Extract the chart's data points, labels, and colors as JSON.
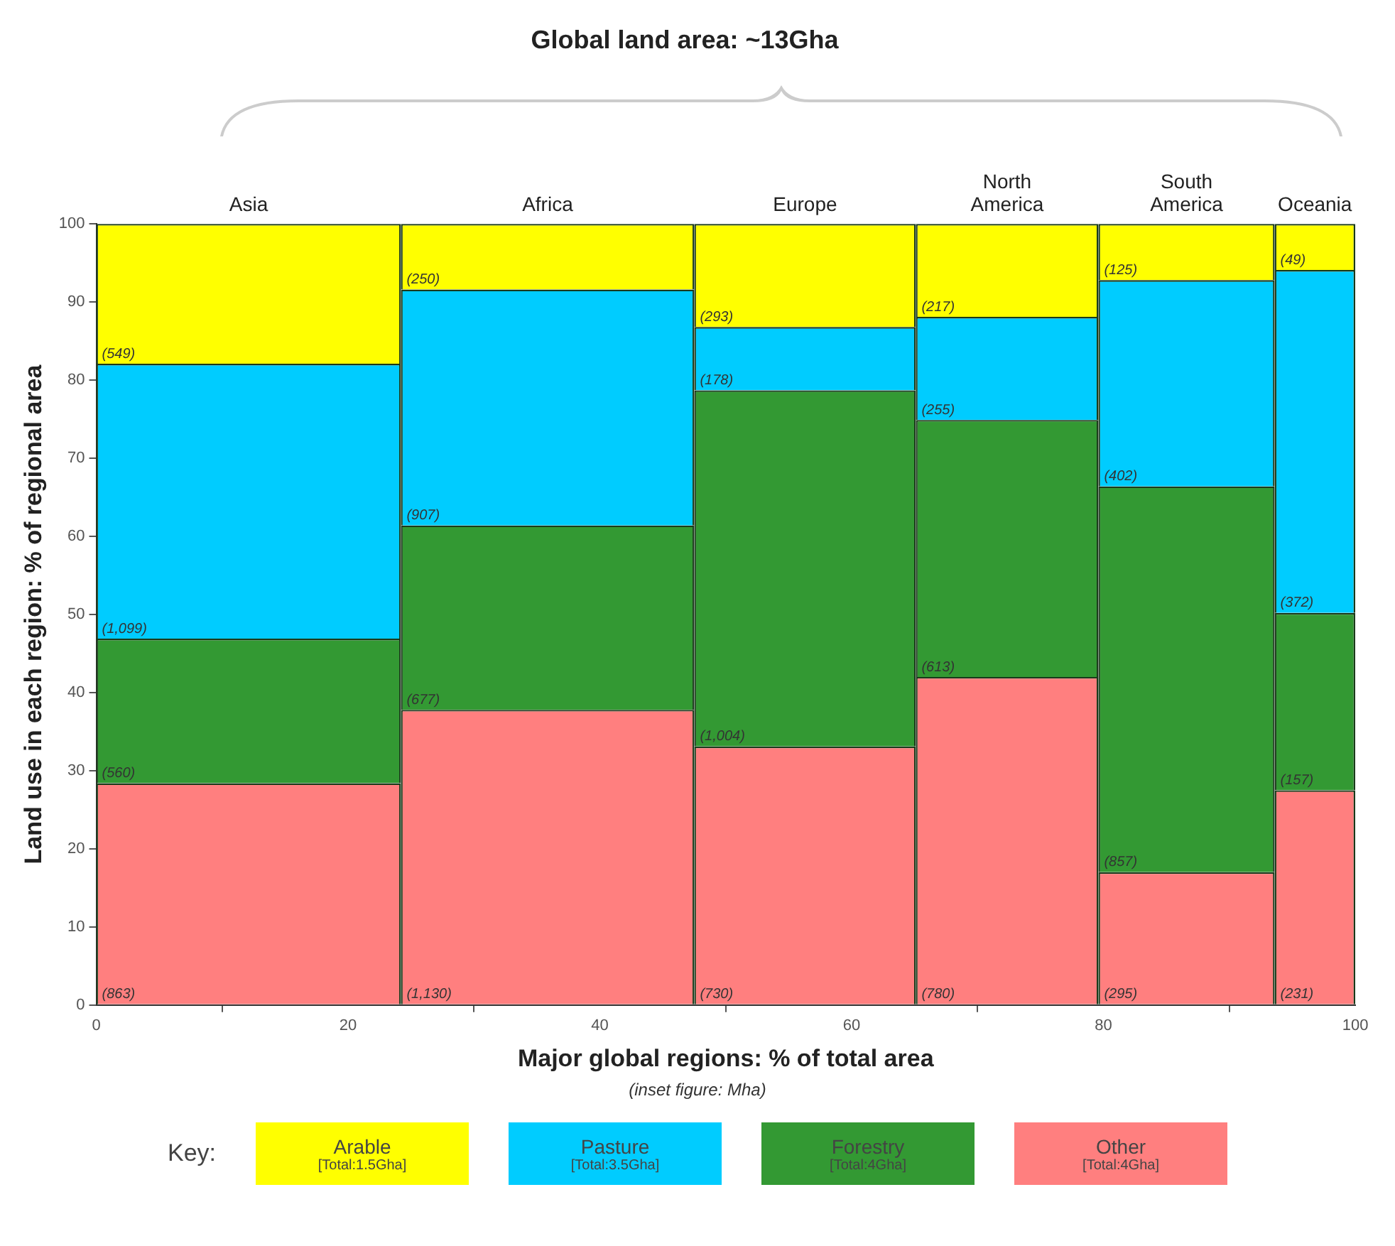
{
  "chart_data": {
    "type": "bar",
    "stacked": true,
    "title": "Global land area: ~13Gha",
    "xlabel": "Major global regions: % of total area",
    "ylabel": "Land use in each region: % of regional area",
    "legend_title": "Key:",
    "x": [
      12.1,
      35.85,
      56.3,
      72.35,
      86.6,
      96.8
    ],
    "xlim": [
      0,
      100
    ],
    "xticks": [
      0,
      20,
      40,
      60,
      80,
      100
    ],
    "ylim": [
      0,
      100
    ],
    "yticks": [
      0,
      10,
      20,
      30,
      40,
      50,
      60,
      70,
      80,
      90,
      100
    ],
    "grid": false,
    "legend": "bottom",
    "series": [
      {
        "name": "Other\n[Total:4Gha]",
        "color": "#ff7f7f",
        "values": [
          28.4,
          37.8,
          33.1,
          42.0,
          17.0,
          27.5
        ]
      },
      {
        "name": "Forestry\n[Total:4Gha]",
        "color": "#339933",
        "values": [
          18.5,
          23.6,
          45.6,
          32.9,
          49.4,
          22.7
        ]
      },
      {
        "name": "Pasture\n[Total:3.5Gha]",
        "color": "#00ccff",
        "values": [
          35.2,
          30.2,
          8.1,
          13.2,
          26.4,
          43.9
        ]
      },
      {
        "name": "Arable\n[Total:1.5Gha]",
        "color": "#ffff00",
        "values": [
          17.9,
          8.4,
          13.2,
          11.9,
          7.2,
          5.9
        ]
      }
    ],
    "annotations": [
      "(inset figure: Mha)",
      {
        "text": "Asia",
        "x": 12.1,
        "y": 100
      },
      {
        "text": "Africa",
        "x": 35.85,
        "y": 100
      },
      {
        "text": "Europe",
        "x": 56.3,
        "y": 100
      },
      {
        "text": "North America",
        "x": 72.35,
        "y": 100
      },
      {
        "text": "South America",
        "x": 86.6,
        "y": 100
      },
      {
        "text": "Oceania",
        "x": 96.8,
        "y": 100
      },
      "(863)",
      "(1,130)",
      "(730)",
      "(780)",
      "(295)",
      "(231)",
      "(560)",
      "(677)",
      "(1,004)",
      "(613)",
      "(857)",
      "(157)",
      "(1,099)",
      "(907)",
      "(178)",
      "(255)",
      "(402)",
      "(372)",
      "(549)",
      "(250)",
      "(293)",
      "(217)",
      "(125)",
      "(49)"
    ]
  }
}
